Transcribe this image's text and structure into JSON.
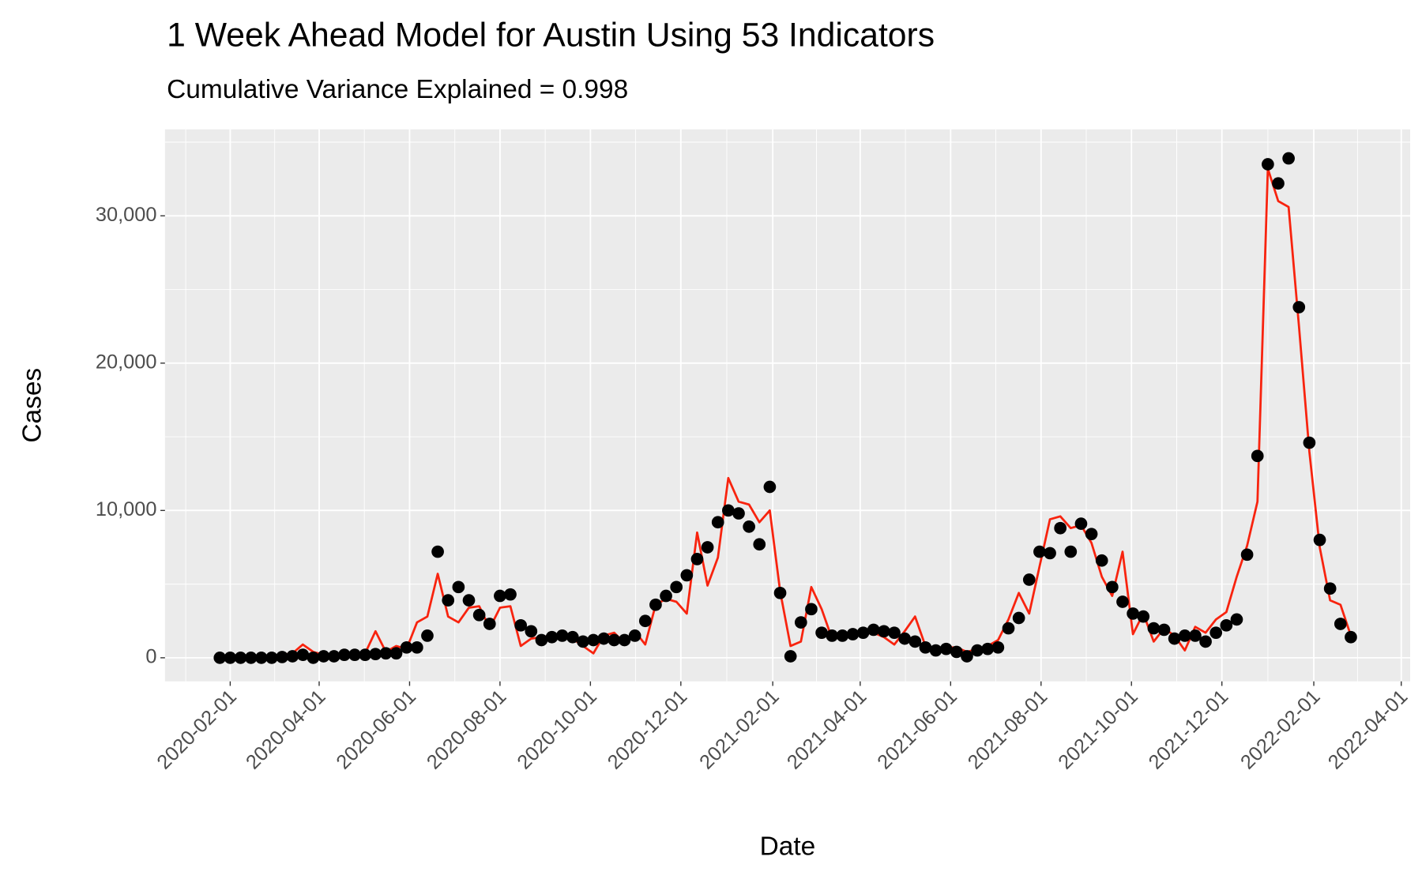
{
  "chart_data": {
    "type": "line",
    "title": "1 Week Ahead Model for Austin Using 53 Indicators",
    "subtitle": "Cumulative Variance Explained = 0.998",
    "x_label": "Date",
    "y_label": "Cases",
    "x": [
      "2020-01-25",
      "2020-02-01",
      "2020-02-08",
      "2020-02-15",
      "2020-02-22",
      "2020-02-29",
      "2020-03-07",
      "2020-03-14",
      "2020-03-21",
      "2020-03-28",
      "2020-04-04",
      "2020-04-11",
      "2020-04-18",
      "2020-04-25",
      "2020-05-02",
      "2020-05-09",
      "2020-05-16",
      "2020-05-23",
      "2020-05-30",
      "2020-06-06",
      "2020-06-13",
      "2020-06-20",
      "2020-06-27",
      "2020-07-04",
      "2020-07-11",
      "2020-07-18",
      "2020-07-25",
      "2020-08-01",
      "2020-08-08",
      "2020-08-15",
      "2020-08-22",
      "2020-08-29",
      "2020-09-05",
      "2020-09-12",
      "2020-09-19",
      "2020-09-26",
      "2020-10-03",
      "2020-10-10",
      "2020-10-17",
      "2020-10-24",
      "2020-10-31",
      "2020-11-07",
      "2020-11-14",
      "2020-11-21",
      "2020-11-28",
      "2020-12-05",
      "2020-12-12",
      "2020-12-19",
      "2020-12-26",
      "2021-01-02",
      "2021-01-09",
      "2021-01-16",
      "2021-01-23",
      "2021-01-30",
      "2021-02-06",
      "2021-02-13",
      "2021-02-20",
      "2021-02-27",
      "2021-03-06",
      "2021-03-13",
      "2021-03-20",
      "2021-03-27",
      "2021-04-03",
      "2021-04-10",
      "2021-04-17",
      "2021-04-24",
      "2021-05-01",
      "2021-05-08",
      "2021-05-15",
      "2021-05-22",
      "2021-05-29",
      "2021-06-05",
      "2021-06-12",
      "2021-06-19",
      "2021-06-26",
      "2021-07-03",
      "2021-07-10",
      "2021-07-17",
      "2021-07-24",
      "2021-07-31",
      "2021-08-07",
      "2021-08-14",
      "2021-08-21",
      "2021-08-28",
      "2021-09-04",
      "2021-09-11",
      "2021-09-18",
      "2021-09-25",
      "2021-10-02",
      "2021-10-09",
      "2021-10-16",
      "2021-10-23",
      "2021-10-30",
      "2021-11-06",
      "2021-11-13",
      "2021-11-20",
      "2021-11-27",
      "2021-12-04",
      "2021-12-11",
      "2021-12-18",
      "2021-12-25",
      "2022-01-01",
      "2022-01-08",
      "2022-01-15",
      "2022-01-22",
      "2022-01-29",
      "2022-02-05",
      "2022-02-12",
      "2022-02-19",
      "2022-02-26"
    ],
    "series": [
      {
        "style": "line",
        "color": "#f8230e",
        "values": [
          0,
          0,
          0,
          0,
          0,
          0,
          200,
          300,
          900,
          400,
          200,
          100,
          200,
          300,
          300,
          1800,
          400,
          800,
          600,
          2400,
          2800,
          5700,
          2800,
          2400,
          3400,
          3500,
          2000,
          3400,
          3500,
          800,
          1300,
          1400,
          1500,
          1600,
          1300,
          800,
          300,
          1500,
          1700,
          1000,
          1800,
          900,
          3600,
          4000,
          3800,
          3000,
          8500,
          4900,
          6800,
          12200,
          10600,
          10400,
          9200,
          10000,
          4500,
          800,
          1100,
          4800,
          3300,
          1300,
          1400,
          1500,
          1600,
          1700,
          1400,
          900,
          1800,
          2800,
          800,
          600,
          700,
          700,
          400,
          600,
          800,
          1200,
          2600,
          4400,
          3000,
          6200,
          9400,
          9600,
          8800,
          9000,
          7800,
          5500,
          4200,
          7200,
          1600,
          3000,
          1100,
          2000,
          1500,
          500,
          2100,
          1700,
          2600,
          3100,
          5500,
          7600,
          10600,
          33200,
          31000,
          30600,
          22500,
          14000,
          7500,
          3900,
          3600,
          1500
        ]
      },
      {
        "style": "point",
        "color": "#000000",
        "values": [
          0,
          0,
          0,
          0,
          0,
          0,
          50,
          100,
          200,
          0,
          100,
          100,
          200,
          200,
          200,
          250,
          300,
          300,
          700,
          700,
          1500,
          7200,
          3900,
          4800,
          3900,
          2900,
          2300,
          4200,
          4300,
          2200,
          1800,
          1200,
          1400,
          1500,
          1400,
          1100,
          1200,
          1300,
          1200,
          1200,
          1500,
          2500,
          3600,
          4200,
          4800,
          5600,
          6700,
          7500,
          9200,
          10000,
          9800,
          8900,
          7700,
          11600,
          4400,
          100,
          2400,
          3300,
          1700,
          1500,
          1500,
          1600,
          1700,
          1900,
          1800,
          1700,
          1300,
          1100,
          700,
          500,
          600,
          400,
          100,
          500,
          600,
          700,
          2000,
          2700,
          5300,
          7200,
          7100,
          8800,
          7200,
          9100,
          8400,
          6600,
          4800,
          3800,
          3000,
          2800,
          2000,
          1900,
          1300,
          1500,
          1500,
          1100,
          1700,
          2200,
          2600,
          7000,
          13700,
          33500,
          32200,
          33900,
          23800,
          14600,
          8000,
          4700,
          2300,
          1400
        ]
      }
    ],
    "xlim": [
      "2019-12-19",
      "2022-04-07"
    ],
    "xticks": [
      "2020-02-01",
      "2020-04-01",
      "2020-06-01",
      "2020-08-01",
      "2020-10-01",
      "2020-12-01",
      "2021-02-01",
      "2021-04-01",
      "2021-06-01",
      "2021-08-01",
      "2021-10-01",
      "2021-12-01",
      "2022-02-01",
      "2022-04-01"
    ],
    "ylim": [
      -1600,
      35870
    ],
    "yticks": [
      0,
      {
        "value": 10000,
        "label": "10,000"
      },
      {
        "value": 20000,
        "label": "20,000"
      },
      {
        "value": 30000,
        "label": "30,000"
      }
    ],
    "grid": true,
    "background": "#ebebeb"
  }
}
